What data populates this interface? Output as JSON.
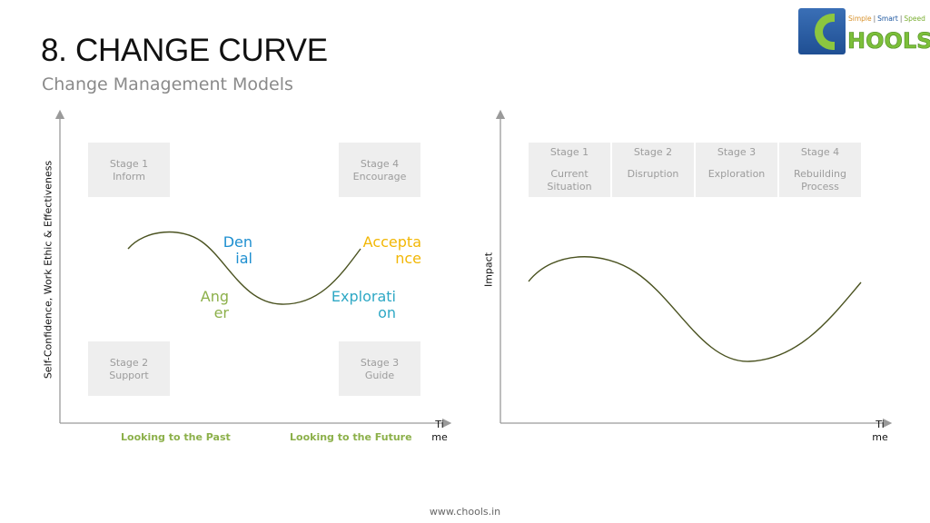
{
  "header": {
    "title": "8. CHANGE CURVE",
    "subtitle": "Change Management Models"
  },
  "logo": {
    "tagline": [
      "Simple",
      "Smart",
      "Speed"
    ],
    "wordmark": "HOOLS"
  },
  "left_diagram": {
    "y_axis_label": "Self-Confidence, Work Ethic & Effectiveness",
    "x_axis_label": "Time",
    "x_axis_label_lines": [
      "Ti",
      "me"
    ],
    "stages": [
      {
        "head": "Stage 1",
        "sub": "Inform"
      },
      {
        "head": "Stage 4",
        "sub": "Encourage"
      },
      {
        "head": "Stage 2",
        "sub": "Support"
      },
      {
        "head": "Stage 3",
        "sub": "Guide"
      }
    ],
    "curve_words": [
      {
        "lines": [
          "Den",
          "ial"
        ],
        "color": "#1e8fd0"
      },
      {
        "lines": [
          "Accepta",
          "nce"
        ],
        "color": "#f2b705"
      },
      {
        "lines": [
          "Ang",
          "er"
        ],
        "color": "#8cb04a"
      },
      {
        "lines": [
          "Explorati",
          "on"
        ],
        "color": "#2ea8c5"
      }
    ],
    "past_label": "Looking to the Past",
    "future_label": "Looking to the Future"
  },
  "right_diagram": {
    "y_axis_label": "Impact",
    "x_axis_label_lines": [
      "Ti",
      "me"
    ],
    "stages": [
      {
        "head": "Stage 1",
        "sub_lines": [
          "Current",
          "Situation"
        ]
      },
      {
        "head": "Stage 2",
        "sub_lines": [
          "Disruption"
        ]
      },
      {
        "head": "Stage 3",
        "sub_lines": [
          "Exploration"
        ]
      },
      {
        "head": "Stage 4",
        "sub_lines": [
          "Rebuilding",
          "Process"
        ]
      }
    ]
  },
  "colors": {
    "curve": "#4a5220",
    "axis": "#9a9a9a",
    "box_bg": "#eeeeee",
    "green_label": "#8cb04a"
  },
  "footer": "www.chools.in"
}
